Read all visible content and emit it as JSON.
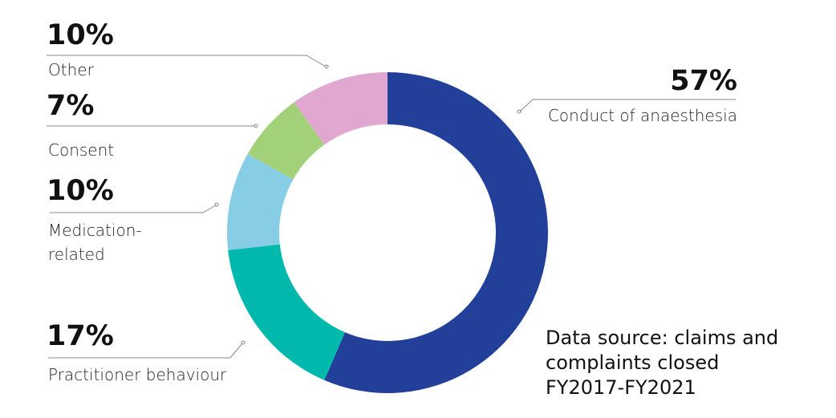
{
  "chart_data": {
    "type": "pie",
    "donut": true,
    "title": "",
    "start": "top",
    "direction": "clockwise",
    "slices": [
      {
        "label": "Conduct of anaesthesia",
        "value": 57,
        "value_label": "57%",
        "color": "#22409a"
      },
      {
        "label": "Practitioner behaviour",
        "value": 17,
        "value_label": "17%",
        "color": "#00b9ad"
      },
      {
        "label": "Medication-related",
        "value": 10,
        "value_label": "10%",
        "color": "#87cde6"
      },
      {
        "label": "Consent",
        "value": 7,
        "value_label": "7%",
        "color": "#a3d17a"
      },
      {
        "label": "Other",
        "value": 10,
        "value_label": "10%",
        "color": "#e0a8d0"
      }
    ],
    "label_lines": [
      "Medication-",
      "related"
    ],
    "annotation": [
      "Data source: claims and",
      "complaints closed",
      "FY2017-FY2021"
    ]
  }
}
